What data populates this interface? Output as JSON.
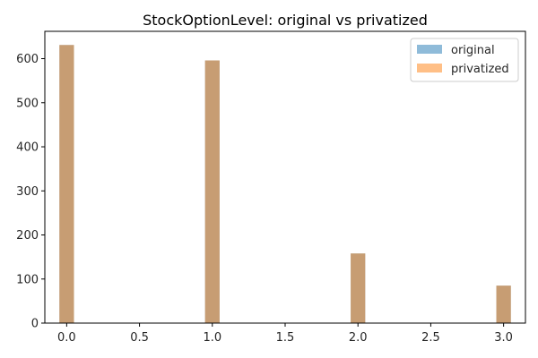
{
  "chart_data": {
    "type": "bar",
    "title": "StockOptionLevel: original vs privatized",
    "xlabel": "",
    "ylabel": "",
    "x": [
      0,
      1,
      2,
      3
    ],
    "bar_width": 0.1,
    "series": [
      {
        "name": "original",
        "values": [
          631,
          596,
          158,
          85
        ],
        "color": "#1f77b4",
        "opacity": 0.5
      },
      {
        "name": "privatized",
        "values": [
          631,
          596,
          158,
          85
        ],
        "color": "#ff7f0e",
        "opacity": 0.5
      }
    ],
    "xlim": [
      -0.15,
      3.15
    ],
    "ylim": [
      0,
      662
    ],
    "xticks": [
      0.0,
      0.5,
      1.0,
      1.5,
      2.0,
      2.5,
      3.0
    ],
    "xtick_labels": [
      "0.0",
      "0.5",
      "1.0",
      "1.5",
      "2.0",
      "2.5",
      "3.0"
    ],
    "yticks": [
      0,
      100,
      200,
      300,
      400,
      500,
      600
    ],
    "ytick_labels": [
      "0",
      "100",
      "200",
      "300",
      "400",
      "500",
      "600"
    ],
    "grid": false,
    "legend_position": "top-right"
  }
}
